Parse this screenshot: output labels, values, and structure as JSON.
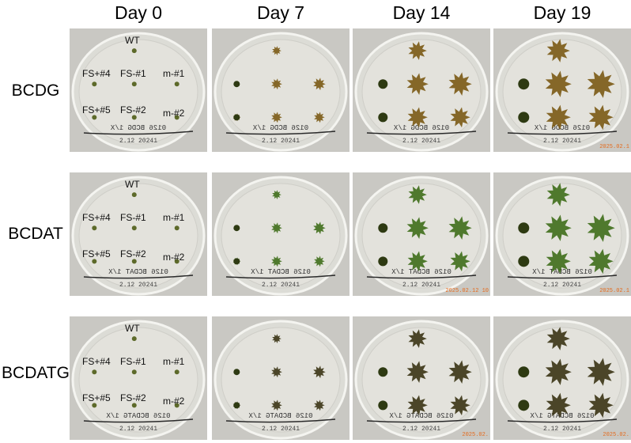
{
  "columns": [
    "Day 0",
    "Day 7",
    "Day 14",
    "Day 19"
  ],
  "rows": [
    {
      "label": "BCDG",
      "panels": [
        {
          "stamp": ""
        },
        {
          "stamp": ""
        },
        {
          "stamp": ""
        },
        {
          "stamp": "2025.02.1"
        }
      ]
    },
    {
      "label": "BCDAT",
      "panels": [
        {
          "stamp": ""
        },
        {
          "stamp": ""
        },
        {
          "stamp": "2025.02.12 10"
        },
        {
          "stamp": "2025.02.1"
        }
      ]
    },
    {
      "label": "BCDATG",
      "panels": [
        {
          "stamp": ""
        },
        {
          "stamp": ""
        },
        {
          "stamp": "2025.02."
        },
        {
          "stamp": "2025.02."
        }
      ]
    }
  ],
  "plate_labels": {
    "wt": "WT",
    "fs4": "FS+#4",
    "fs1": "FS-#1",
    "m1": "m-#1",
    "fs5": "FS+#5",
    "fs2": "FS-#2",
    "m2": "m-#2"
  },
  "colony_colors": {
    "BCDG": "#7a5a14",
    "BCDAT": "#3e6e1a",
    "BCDATG": "#3a3414"
  },
  "handwriting_lines": {
    "BCDG": "0126 BCDG 1/X",
    "BCDAT": "0126 BCDAT 1/X",
    "BCDATG": "0126 BCDATG 1/X",
    "second": "2.12 20241"
  }
}
